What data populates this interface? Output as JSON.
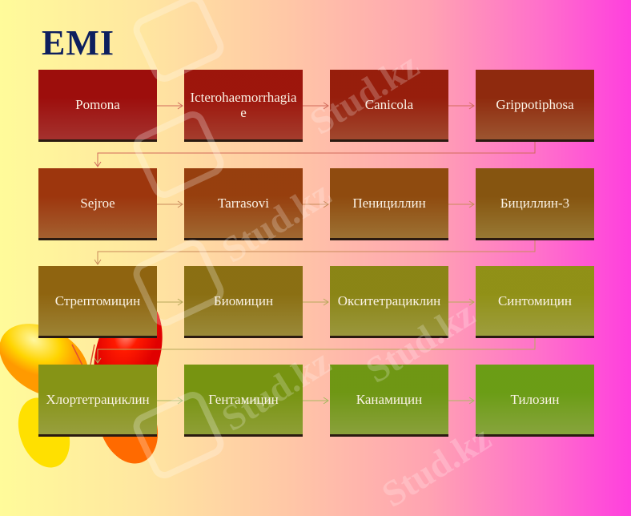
{
  "slide": {
    "title": "EMI",
    "watermark": "Stud.kz",
    "steps": [
      "Pomona",
      "Icterohaemorrhagiae",
      "Canicola",
      "Grippotiphosa",
      "Sejroe",
      "Tarrasovi",
      "Пенициллин",
      "Бициллин-3",
      "Стрептомицин",
      "Биомицин",
      "Окситетрациклин",
      "Синтомицин",
      "Хлортетрациклин",
      "Гентамицин",
      "Канамицин",
      "Тилозин"
    ],
    "colors": [
      "#c83c38",
      "#c84a37",
      "#c45838",
      "#bf683b",
      "#c8753a",
      "#c47f3c",
      "#bf8a3e",
      "#b9933f",
      "#bfa040",
      "#bca845",
      "#bcb84a",
      "#c0c04c",
      "#b9c24b",
      "#aec242",
      "#a8c448",
      "#a5c84a"
    ]
  }
}
